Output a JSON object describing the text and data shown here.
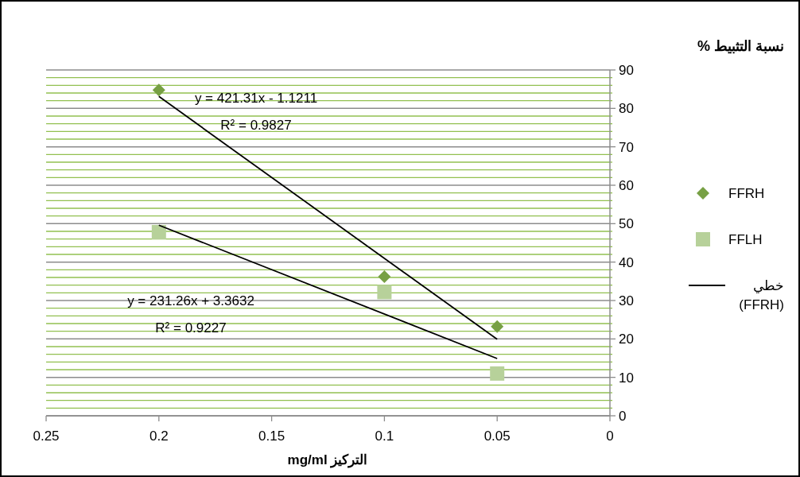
{
  "chart_data": {
    "type": "scatter",
    "xlabel": "التركيز mg/ml",
    "ylabel": "نسبة التثبيط %",
    "xlim": [
      0.25,
      0
    ],
    "xticks": [
      0.25,
      0.2,
      0.15,
      0.1,
      0.05,
      0
    ],
    "ylim": [
      0,
      90
    ],
    "yticks": [
      0,
      {
        "value": 2,
        "label": null
      },
      {
        "value": 4,
        "label": null
      },
      {
        "value": 6,
        "label": null
      },
      {
        "value": 8,
        "label": null
      },
      10,
      {
        "value": 12,
        "label": null
      },
      {
        "value": 14,
        "label": null
      },
      {
        "value": 16,
        "label": null
      },
      {
        "value": 18,
        "label": null
      },
      20,
      {
        "value": 22,
        "label": null
      },
      {
        "value": 24,
        "label": null
      },
      {
        "value": 26,
        "label": null
      },
      {
        "value": 28,
        "label": null
      },
      30,
      {
        "value": 32,
        "label": null
      },
      {
        "value": 34,
        "label": null
      },
      {
        "value": 36,
        "label": null
      },
      {
        "value": 38,
        "label": null
      },
      40,
      {
        "value": 42,
        "label": null
      },
      {
        "value": 44,
        "label": null
      },
      {
        "value": 46,
        "label": null
      },
      {
        "value": 48,
        "label": null
      },
      50,
      {
        "value": 52,
        "label": null
      },
      {
        "value": 54,
        "label": null
      },
      {
        "value": 56,
        "label": null
      },
      {
        "value": 58,
        "label": null
      },
      60,
      {
        "value": 62,
        "label": null
      },
      {
        "value": 64,
        "label": null
      },
      {
        "value": 66,
        "label": null
      },
      {
        "value": 68,
        "label": null
      },
      70,
      {
        "value": 72,
        "label": null
      },
      {
        "value": 74,
        "label": null
      },
      {
        "value": 76,
        "label": null
      },
      {
        "value": 78,
        "label": null
      },
      80,
      {
        "value": 82,
        "label": null
      },
      {
        "value": 84,
        "label": null
      },
      {
        "value": 86,
        "label": null
      },
      {
        "value": 88,
        "label": null
      },
      90
    ],
    "grid": "y",
    "legend": "right",
    "series": [
      {
        "name": "FFRH",
        "marker": "diamond",
        "color": "#77a044",
        "x": [
          0.2,
          0.1,
          0.05
        ],
        "values": [
          84.8,
          36.2,
          23.2
        ]
      },
      {
        "name": "FFLH",
        "marker": "square",
        "color": "#b7d19a",
        "x": [
          0.2,
          0.1,
          0.05
        ],
        "values": [
          47.8,
          32.2,
          11
        ]
      },
      {
        "name": "خطي (FFRH)",
        "type": "line",
        "marker": "none",
        "color": "#000000",
        "x": [
          0.2,
          0.05
        ],
        "values": [
          83.1,
          19.9
        ]
      },
      {
        "type": "line",
        "marker": "none",
        "color": "#000000",
        "x": [
          0.2,
          0.05
        ],
        "values": [
          49.6,
          14.9
        ]
      }
    ],
    "annotations": [
      "y = 421.31x - 1.1211",
      "R² = 0.9827",
      "y = 231.26x + 3.3632",
      "R² = 0.9227"
    ]
  }
}
